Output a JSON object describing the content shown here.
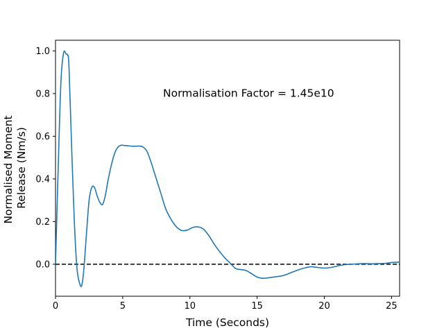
{
  "chart_data": {
    "type": "line",
    "title": "",
    "xlabel": "Time (Seconds)",
    "ylabel_lines": [
      "Normalised Moment",
      "Release (Nm/s)"
    ],
    "xlim": [
      0,
      25.6
    ],
    "ylim": [
      -0.15,
      1.05
    ],
    "xticks": [
      0,
      5,
      10,
      15,
      20,
      25
    ],
    "yticks": [
      0.0,
      0.2,
      0.4,
      0.6,
      0.8,
      1.0
    ],
    "xtick_labels": [
      "0",
      "5",
      "10",
      "15",
      "20",
      "25"
    ],
    "ytick_labels": [
      "0.0",
      "0.2",
      "0.4",
      "0.6",
      "0.8",
      "1.0"
    ],
    "grid": false,
    "annotation": {
      "text": "Normalisation Factor = 1.45e10",
      "x": 8.0,
      "y": 0.8
    },
    "reference_line": {
      "y": 0,
      "style": "dashed",
      "color": "#000000"
    },
    "series": [
      {
        "color": "#1f77b4",
        "x": [
          0,
          0.2,
          0.4,
          0.6,
          0.8,
          0.9,
          1.0,
          1.2,
          1.4,
          1.6,
          1.8,
          1.95,
          2.1,
          2.3,
          2.5,
          2.7,
          2.9,
          3.1,
          3.3,
          3.5,
          3.7,
          3.9,
          4.1,
          4.3,
          4.5,
          4.7,
          4.9,
          5.1,
          5.4,
          5.8,
          6.2,
          6.5,
          6.8,
          7.1,
          7.4,
          7.8,
          8.2,
          8.6,
          9.0,
          9.4,
          9.8,
          10.2,
          10.6,
          11.0,
          11.4,
          11.8,
          12.2,
          12.6,
          13.0,
          13.4,
          13.8,
          14.2,
          14.6,
          15.0,
          15.5,
          16.0,
          16.5,
          17.0,
          17.5,
          18.0,
          18.5,
          19.0,
          19.5,
          20.0,
          20.5,
          21.0,
          21.5,
          22.0,
          22.5,
          23.0,
          23.5,
          24.0,
          24.5,
          25.0,
          25.6
        ],
        "y": [
          0.0,
          0.45,
          0.85,
          0.99,
          0.985,
          0.98,
          0.93,
          0.55,
          0.2,
          -0.02,
          -0.09,
          -0.1,
          -0.03,
          0.14,
          0.3,
          0.36,
          0.36,
          0.32,
          0.29,
          0.28,
          0.32,
          0.39,
          0.45,
          0.5,
          0.535,
          0.552,
          0.558,
          0.557,
          0.555,
          0.553,
          0.554,
          0.55,
          0.53,
          0.48,
          0.42,
          0.34,
          0.26,
          0.21,
          0.175,
          0.158,
          0.16,
          0.172,
          0.175,
          0.165,
          0.135,
          0.095,
          0.06,
          0.03,
          0.005,
          -0.02,
          -0.025,
          -0.03,
          -0.045,
          -0.06,
          -0.066,
          -0.062,
          -0.058,
          -0.052,
          -0.04,
          -0.028,
          -0.018,
          -0.012,
          -0.015,
          -0.018,
          -0.015,
          -0.008,
          -0.002,
          0.0,
          0.002,
          0.003,
          0.002,
          0.003,
          0.004,
          0.008,
          0.01
        ]
      }
    ]
  }
}
